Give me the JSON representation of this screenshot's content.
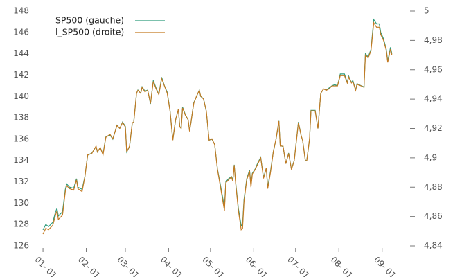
{
  "chart_data": {
    "type": "line",
    "x": [
      0,
      2,
      4,
      7,
      9,
      10,
      11,
      14,
      16,
      17,
      19,
      22,
      24,
      25,
      28,
      30,
      32,
      35,
      38,
      39,
      41,
      43,
      45,
      48,
      50,
      53,
      55,
      57,
      59,
      60,
      62,
      64,
      65,
      67,
      68,
      70,
      71,
      73,
      75,
      77,
      79,
      81,
      83,
      85,
      87,
      89,
      91,
      93,
      95,
      97,
      98,
      99,
      100,
      102,
      104,
      105,
      106,
      108,
      110,
      112,
      113,
      115,
      117,
      119,
      121,
      123,
      125,
      127,
      130,
      131,
      133,
      135,
      136,
      137,
      138,
      140,
      142,
      143,
      144,
      146,
      148,
      149,
      150,
      152,
      154,
      156,
      158,
      160,
      161,
      163,
      165,
      167,
      169,
      170,
      172,
      174,
      176,
      178,
      180,
      183,
      185,
      186,
      188,
      189,
      191,
      192,
      195,
      197,
      199,
      201,
      203,
      205,
      207,
      209,
      211,
      213,
      216,
      218,
      219,
      221,
      222,
      224,
      225,
      228,
      230,
      231,
      233,
      235,
      237,
      239,
      241,
      242,
      244,
      246,
      247,
      249,
      250
    ],
    "series": [
      {
        "name": "SP500 (gauche)",
        "color": "#2e9c7c",
        "axis": "y",
        "values": [
          127.5,
          128.0,
          127.8,
          128.2,
          129.2,
          129.5,
          128.8,
          129.2,
          131.3,
          131.8,
          131.5,
          131.4,
          132.3,
          131.5,
          131.3,
          132.5,
          134.5,
          134.7,
          135.3,
          134.8,
          135.2,
          134.6,
          136.2,
          136.4,
          136.0,
          137.3,
          137.0,
          137.6,
          137.2,
          134.8,
          135.3,
          137.5,
          137.6,
          140.3,
          140.6,
          140.3,
          140.9,
          140.5,
          140.6,
          139.3,
          141.5,
          140.8,
          140.2,
          141.8,
          141.0,
          140.4,
          138.7,
          135.9,
          137.8,
          138.8,
          137.2,
          137.0,
          139.0,
          138.3,
          137.8,
          136.8,
          137.5,
          139.4,
          140.0,
          140.6,
          140.0,
          139.8,
          138.6,
          135.9,
          136.0,
          135.5,
          133.2,
          131.8,
          129.6,
          132.0,
          132.3,
          132.5,
          132.2,
          133.6,
          132.0,
          129.5,
          127.9,
          128.0,
          130.3,
          132.3,
          133.1,
          131.7,
          132.8,
          133.2,
          133.8,
          134.3,
          132.4,
          133.3,
          131.5,
          133.0,
          134.8,
          136.0,
          137.7,
          135.4,
          135.3,
          133.7,
          134.7,
          133.2,
          134.0,
          137.6,
          136.3,
          135.9,
          134.0,
          134.0,
          136.0,
          138.7,
          138.7,
          137.0,
          140.3,
          140.7,
          140.6,
          140.8,
          141.0,
          141.1,
          141.0,
          142.1,
          142.1,
          141.3,
          141.9,
          141.3,
          141.5,
          140.6,
          141.2,
          141.0,
          140.9,
          144.0,
          143.7,
          144.4,
          147.2,
          146.8,
          146.8,
          146.0,
          145.4,
          144.4,
          143.3,
          144.6,
          144.0
        ]
      },
      {
        "name": "l_SP500 (droite)",
        "color": "#c47a22",
        "axis": "y2",
        "values": [
          4.848,
          4.852,
          4.851,
          4.854,
          4.861,
          4.864,
          4.858,
          4.861,
          4.877,
          4.881,
          4.879,
          4.878,
          4.885,
          4.879,
          4.877,
          4.887,
          4.902,
          4.903,
          4.908,
          4.904,
          4.907,
          4.902,
          4.914,
          4.916,
          4.913,
          4.922,
          4.92,
          4.924,
          4.921,
          4.904,
          4.908,
          4.924,
          4.924,
          4.944,
          4.946,
          4.944,
          4.948,
          4.945,
          4.946,
          4.937,
          4.952,
          4.947,
          4.943,
          4.954,
          4.949,
          4.944,
          4.932,
          4.912,
          4.926,
          4.933,
          4.921,
          4.92,
          4.934,
          4.929,
          4.926,
          4.918,
          4.924,
          4.937,
          4.942,
          4.946,
          4.942,
          4.94,
          4.932,
          4.912,
          4.913,
          4.909,
          4.892,
          4.881,
          4.864,
          4.883,
          4.885,
          4.887,
          4.884,
          4.895,
          4.883,
          4.864,
          4.851,
          4.852,
          4.87,
          4.885,
          4.891,
          4.88,
          4.889,
          4.892,
          4.896,
          4.9,
          4.886,
          4.893,
          4.879,
          4.89,
          4.904,
          4.913,
          4.925,
          4.908,
          4.908,
          4.896,
          4.903,
          4.892,
          4.898,
          4.924,
          4.915,
          4.912,
          4.898,
          4.898,
          4.913,
          4.932,
          4.932,
          4.92,
          4.944,
          4.947,
          4.946,
          4.947,
          4.949,
          4.949,
          4.949,
          4.956,
          4.956,
          4.951,
          4.955,
          4.951,
          4.952,
          4.946,
          4.95,
          4.949,
          4.948,
          4.97,
          4.968,
          4.973,
          4.992,
          4.989,
          4.989,
          4.984,
          4.98,
          4.973,
          4.965,
          4.974,
          4.97
        ]
      }
    ],
    "xlim": [
      -5,
      262
    ],
    "xticks": [
      {
        "value": 0,
        "label": "01- 01"
      },
      {
        "value": 31,
        "label": "02- 01"
      },
      {
        "value": 59,
        "label": "03- 01"
      },
      {
        "value": 90,
        "label": "04- 01"
      },
      {
        "value": 120,
        "label": "05- 01"
      },
      {
        "value": 151,
        "label": "06- 01"
      },
      {
        "value": 181,
        "label": "07- 01"
      },
      {
        "value": 212,
        "label": "08- 01"
      },
      {
        "value": 243,
        "label": "09- 01"
      }
    ],
    "ylim": [
      126,
      148
    ],
    "yticks": [
      126,
      128,
      130,
      132,
      134,
      136,
      138,
      140,
      142,
      144,
      146,
      148
    ],
    "y2lim": [
      4.84,
      5
    ],
    "y2ticks": [
      {
        "value": 4.84,
        "label": "4,84"
      },
      {
        "value": 4.86,
        "label": "4,86"
      },
      {
        "value": 4.88,
        "label": "4,88"
      },
      {
        "value": 4.9,
        "label": "4,9"
      },
      {
        "value": 4.92,
        "label": "4,92"
      },
      {
        "value": 4.94,
        "label": "4,94"
      },
      {
        "value": 4.96,
        "label": "4,96"
      },
      {
        "value": 4.98,
        "label": "4,98"
      },
      5
    ],
    "legend": "upper left",
    "grid": false
  }
}
